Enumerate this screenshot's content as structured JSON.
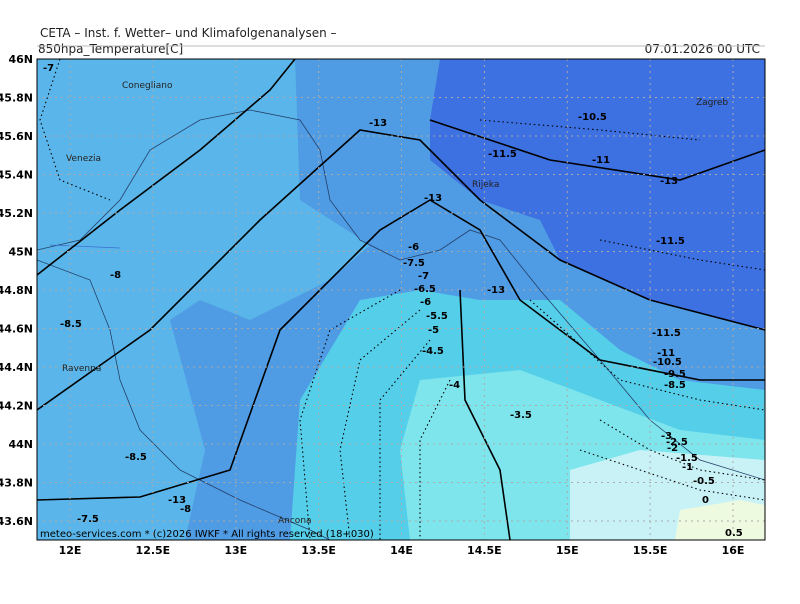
{
  "header": {
    "title": "CETA – Inst. f. Wetter– und Klimafolgenanalysen –",
    "product": "850hpa_Temperature[C]",
    "valid_time": "07.01.2026 00 UTC"
  },
  "map": {
    "lat_ticks": [
      {
        "value": 46,
        "label": "46N"
      },
      {
        "value": 45.8,
        "label": "45.8N"
      },
      {
        "value": 45.6,
        "label": "45.6N"
      },
      {
        "value": 45.4,
        "label": "45.4N"
      },
      {
        "value": 45.2,
        "label": "45.2N"
      },
      {
        "value": 45,
        "label": "45N"
      },
      {
        "value": 44.8,
        "label": "44.8N"
      },
      {
        "value": 44.6,
        "label": "44.6N"
      },
      {
        "value": 44.4,
        "label": "44.4N"
      },
      {
        "value": 44.2,
        "label": "44.2N"
      },
      {
        "value": 44,
        "label": "44N"
      },
      {
        "value": 43.8,
        "label": "43.8N"
      },
      {
        "value": 43.6,
        "label": "43.6N"
      }
    ],
    "lon_ticks": [
      {
        "value": 12,
        "label": "12E"
      },
      {
        "value": 12.5,
        "label": "12.5E"
      },
      {
        "value": 13,
        "label": "13E"
      },
      {
        "value": 13.5,
        "label": "13.5E"
      },
      {
        "value": 14,
        "label": "14E"
      },
      {
        "value": 14.5,
        "label": "14.5E"
      },
      {
        "value": 15,
        "label": "15E"
      },
      {
        "value": 15.5,
        "label": "15.5E"
      },
      {
        "value": 16,
        "label": "16E"
      }
    ],
    "places": [
      "Conegliano",
      "Venezia",
      "Ravenna",
      "Ancona",
      "Rijeka",
      "Zagreb"
    ],
    "contour_labels": [
      "-7",
      "-8",
      "-8.5",
      "-8.5",
      "-8",
      "-7.5",
      "-13",
      "-13",
      "-13",
      "-13",
      "-13",
      "-10.5",
      "-11.5",
      "-11",
      "-11.5",
      "-6",
      "-7.5",
      "-7",
      "-6.5",
      "-6",
      "-5.5",
      "-5",
      "-4.5",
      "-4",
      "-3.5",
      "-11.5",
      "-11",
      "-10.5",
      "-9.5",
      "-8.5",
      "-3",
      "-2.5",
      "-2",
      "-1.5",
      "-1",
      "-0.5",
      "0",
      "0.5"
    ]
  },
  "footer": "meteo-services.com * (c)2026 IWKF * All rights reserved (18+030)"
}
